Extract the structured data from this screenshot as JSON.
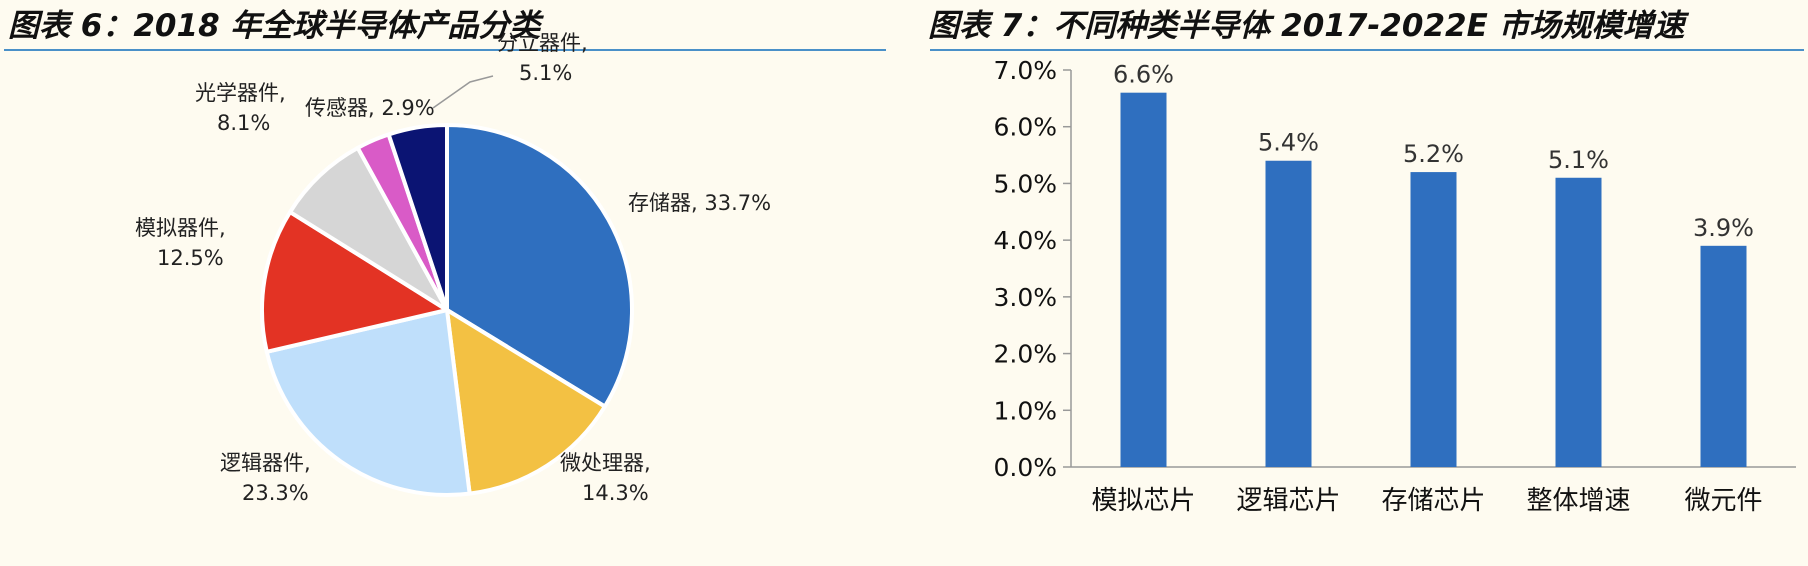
{
  "charts": [
    {
      "title": "图表 6：2018 年全球半导体产品分类",
      "chart_data": {
        "type": "pie",
        "title": "图表 6：2018 年全球半导体产品分类",
        "slices": [
          {
            "name": "存储器",
            "value": 33.7,
            "label_text": "33.7%",
            "color": "#2f6fbf"
          },
          {
            "name": "微处理器",
            "value": 14.3,
            "label_text": "14.3%",
            "color": "#f3c143"
          },
          {
            "name": "逻辑器件",
            "value": 23.3,
            "label_text": "23.3%",
            "color": "#bfdffb"
          },
          {
            "name": "模拟器件",
            "value": 12.5,
            "label_text": "12.5%",
            "color": "#e33324"
          },
          {
            "name": "光学器件",
            "value": 8.1,
            "label_text": "8.1%",
            "color": "#d6d6d6"
          },
          {
            "name": "传感器",
            "value": 2.9,
            "label_text": "2.9%",
            "color": "#d95bc7"
          },
          {
            "name": "分立器件",
            "value": 5.1,
            "label_text": "5.1%",
            "color": "#0b1473"
          }
        ]
      }
    },
    {
      "title": "图表 7：不同种类半导体 2017-2022E 市场规模增速",
      "chart_data": {
        "type": "bar",
        "title": "图表 7：不同种类半导体 2017-2022E 市场规模增速",
        "categories": [
          "模拟芯片",
          "逻辑芯片",
          "存储芯片",
          "整体增速",
          "微元件"
        ],
        "values": [
          6.6,
          5.4,
          5.2,
          5.1,
          3.9
        ],
        "value_labels": [
          "6.6%",
          "5.4%",
          "5.2%",
          "5.1%",
          "3.9%"
        ],
        "ylim": [
          0,
          7
        ],
        "yticks": [
          "0.0%",
          "1.0%",
          "2.0%",
          "3.0%",
          "4.0%",
          "5.0%",
          "6.0%",
          "7.0%"
        ],
        "bar_color": "#2f6fbf",
        "grid": false
      }
    }
  ]
}
